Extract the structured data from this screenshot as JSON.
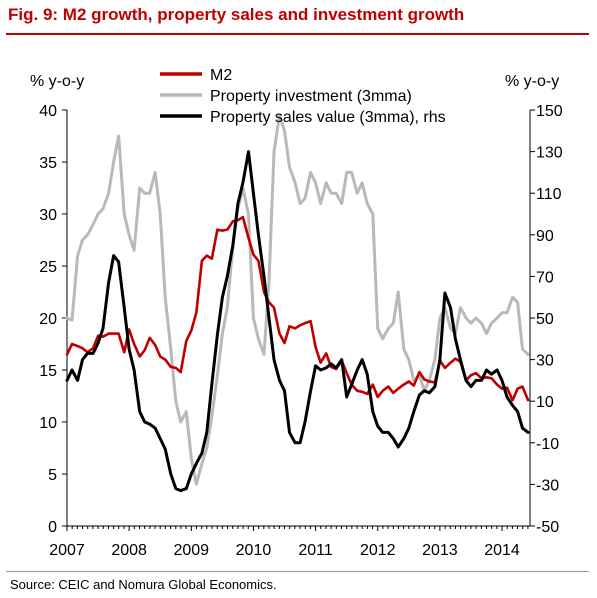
{
  "title": "Fig. 9: M2 growth, property sales and investment growth",
  "source": "Source: CEIC and Nomura Global Economics.",
  "chart_data": {
    "type": "line",
    "x_ticks": [
      "2007",
      "2008",
      "2009",
      "2010",
      "2011",
      "2012",
      "2013",
      "2014"
    ],
    "y_left": {
      "label": "% y-o-y",
      "ylim": [
        0,
        40
      ],
      "ticks": [
        0,
        5,
        10,
        15,
        20,
        25,
        30,
        35,
        40
      ]
    },
    "y_right": {
      "label": "% y-o-y",
      "ylim": [
        -50,
        150
      ],
      "ticks": [
        -50,
        -30,
        -10,
        10,
        30,
        50,
        70,
        90,
        110,
        130,
        150
      ]
    },
    "grid": false,
    "legend": {
      "placement": "top-center"
    },
    "series": [
      {
        "name": "M2",
        "axis": "left",
        "color": "#c00000",
        "points": [
          [
            2007.0,
            16.5
          ],
          [
            2007.08,
            17.5
          ],
          [
            2007.17,
            17.3
          ],
          [
            2007.25,
            17.1
          ],
          [
            2007.33,
            16.7
          ],
          [
            2007.42,
            17.1
          ],
          [
            2007.5,
            18.3
          ],
          [
            2007.58,
            18.2
          ],
          [
            2007.67,
            18.5
          ],
          [
            2007.75,
            18.5
          ],
          [
            2007.83,
            18.5
          ],
          [
            2007.92,
            16.7
          ],
          [
            2008.0,
            18.9
          ],
          [
            2008.08,
            17.5
          ],
          [
            2008.17,
            16.3
          ],
          [
            2008.25,
            16.9
          ],
          [
            2008.33,
            18.1
          ],
          [
            2008.42,
            17.4
          ],
          [
            2008.5,
            16.3
          ],
          [
            2008.58,
            16.0
          ],
          [
            2008.67,
            15.3
          ],
          [
            2008.75,
            15.2
          ],
          [
            2008.83,
            14.8
          ],
          [
            2008.92,
            17.8
          ],
          [
            2009.0,
            18.8
          ],
          [
            2009.08,
            20.5
          ],
          [
            2009.17,
            25.5
          ],
          [
            2009.25,
            26.0
          ],
          [
            2009.33,
            25.7
          ],
          [
            2009.42,
            28.5
          ],
          [
            2009.5,
            28.4
          ],
          [
            2009.58,
            28.5
          ],
          [
            2009.67,
            29.3
          ],
          [
            2009.75,
            29.4
          ],
          [
            2009.83,
            29.7
          ],
          [
            2009.92,
            27.7
          ],
          [
            2010.0,
            26.1
          ],
          [
            2010.08,
            25.5
          ],
          [
            2010.17,
            22.5
          ],
          [
            2010.25,
            21.5
          ],
          [
            2010.33,
            21.0
          ],
          [
            2010.42,
            18.5
          ],
          [
            2010.5,
            17.6
          ],
          [
            2010.58,
            19.2
          ],
          [
            2010.67,
            19.0
          ],
          [
            2010.75,
            19.3
          ],
          [
            2010.83,
            19.5
          ],
          [
            2010.92,
            19.7
          ],
          [
            2011.0,
            17.2
          ],
          [
            2011.08,
            15.7
          ],
          [
            2011.17,
            16.6
          ],
          [
            2011.25,
            15.3
          ],
          [
            2011.33,
            15.1
          ],
          [
            2011.42,
            15.9
          ],
          [
            2011.5,
            14.7
          ],
          [
            2011.58,
            13.6
          ],
          [
            2011.67,
            13.0
          ],
          [
            2011.75,
            12.9
          ],
          [
            2011.83,
            12.7
          ],
          [
            2011.92,
            13.6
          ],
          [
            2012.0,
            12.4
          ],
          [
            2012.08,
            13.0
          ],
          [
            2012.17,
            13.4
          ],
          [
            2012.25,
            12.8
          ],
          [
            2012.33,
            13.2
          ],
          [
            2012.42,
            13.6
          ],
          [
            2012.5,
            13.9
          ],
          [
            2012.58,
            13.5
          ],
          [
            2012.67,
            14.8
          ],
          [
            2012.75,
            14.1
          ],
          [
            2012.83,
            13.9
          ],
          [
            2012.92,
            13.8
          ],
          [
            2013.0,
            15.9
          ],
          [
            2013.08,
            15.2
          ],
          [
            2013.17,
            15.7
          ],
          [
            2013.25,
            16.1
          ],
          [
            2013.33,
            15.8
          ],
          [
            2013.42,
            14.0
          ],
          [
            2013.5,
            14.5
          ],
          [
            2013.58,
            14.7
          ],
          [
            2013.67,
            14.2
          ],
          [
            2013.75,
            14.3
          ],
          [
            2013.83,
            14.2
          ],
          [
            2013.92,
            13.6
          ],
          [
            2014.0,
            13.2
          ],
          [
            2014.08,
            13.3
          ],
          [
            2014.17,
            12.1
          ],
          [
            2014.25,
            13.2
          ],
          [
            2014.33,
            13.4
          ],
          [
            2014.42,
            12.1
          ]
        ]
      },
      {
        "name": "Property investment (3mma)",
        "axis": "left",
        "color": "#b9b9b9",
        "points": [
          [
            2007.0,
            20.0
          ],
          [
            2007.08,
            19.8
          ],
          [
            2007.17,
            26.0
          ],
          [
            2007.25,
            27.5
          ],
          [
            2007.33,
            28.0
          ],
          [
            2007.42,
            29.0
          ],
          [
            2007.5,
            30.0
          ],
          [
            2007.58,
            30.5
          ],
          [
            2007.67,
            32.0
          ],
          [
            2007.75,
            35.0
          ],
          [
            2007.83,
            37.5
          ],
          [
            2007.92,
            30.0
          ],
          [
            2008.0,
            28.0
          ],
          [
            2008.08,
            26.5
          ],
          [
            2008.17,
            32.5
          ],
          [
            2008.25,
            32.0
          ],
          [
            2008.33,
            32.0
          ],
          [
            2008.42,
            34.0
          ],
          [
            2008.5,
            30.0
          ],
          [
            2008.58,
            22.0
          ],
          [
            2008.67,
            17.0
          ],
          [
            2008.75,
            12.0
          ],
          [
            2008.83,
            10.0
          ],
          [
            2008.92,
            11.0
          ],
          [
            2009.0,
            6.5
          ],
          [
            2009.08,
            4.0
          ],
          [
            2009.17,
            6.0
          ],
          [
            2009.25,
            7.5
          ],
          [
            2009.33,
            10.5
          ],
          [
            2009.42,
            14.5
          ],
          [
            2009.5,
            18.5
          ],
          [
            2009.58,
            21.0
          ],
          [
            2009.67,
            27.0
          ],
          [
            2009.75,
            30.5
          ],
          [
            2009.83,
            32.5
          ],
          [
            2009.92,
            30.0
          ],
          [
            2010.0,
            20.0
          ],
          [
            2010.08,
            18.0
          ],
          [
            2010.17,
            16.5
          ],
          [
            2010.25,
            23.5
          ],
          [
            2010.33,
            36.0
          ],
          [
            2010.42,
            39.5
          ],
          [
            2010.5,
            38.0
          ],
          [
            2010.58,
            34.5
          ],
          [
            2010.67,
            33.0
          ],
          [
            2010.75,
            31.0
          ],
          [
            2010.83,
            31.5
          ],
          [
            2010.92,
            34.0
          ],
          [
            2011.0,
            33.0
          ],
          [
            2011.08,
            31.0
          ],
          [
            2011.17,
            33.0
          ],
          [
            2011.25,
            32.0
          ],
          [
            2011.33,
            32.0
          ],
          [
            2011.42,
            31.0
          ],
          [
            2011.5,
            34.0
          ],
          [
            2011.58,
            34.0
          ],
          [
            2011.67,
            32.0
          ],
          [
            2011.75,
            33.0
          ],
          [
            2011.83,
            31.0
          ],
          [
            2011.92,
            30.0
          ],
          [
            2012.0,
            19.0
          ],
          [
            2012.08,
            18.0
          ],
          [
            2012.17,
            19.0
          ],
          [
            2012.25,
            19.5
          ],
          [
            2012.33,
            22.5
          ],
          [
            2012.42,
            17.0
          ],
          [
            2012.5,
            16.0
          ],
          [
            2012.58,
            14.0
          ],
          [
            2012.67,
            14.5
          ],
          [
            2012.75,
            13.0
          ],
          [
            2012.83,
            14.0
          ],
          [
            2012.92,
            16.0
          ],
          [
            2013.0,
            20.0
          ],
          [
            2013.08,
            21.0
          ],
          [
            2013.17,
            19.0
          ],
          [
            2013.25,
            18.5
          ],
          [
            2013.33,
            21.0
          ],
          [
            2013.42,
            20.0
          ],
          [
            2013.5,
            19.5
          ],
          [
            2013.58,
            20.0
          ],
          [
            2013.67,
            19.5
          ],
          [
            2013.75,
            18.5
          ],
          [
            2013.83,
            19.5
          ],
          [
            2013.92,
            20.0
          ],
          [
            2014.0,
            20.5
          ],
          [
            2014.08,
            20.5
          ],
          [
            2014.17,
            22.0
          ],
          [
            2014.25,
            21.5
          ],
          [
            2014.33,
            17.0
          ],
          [
            2014.42,
            16.5
          ]
        ]
      },
      {
        "name": "Property sales value (3mma), rhs",
        "axis": "right",
        "color": "#000000",
        "points": [
          [
            2007.0,
            20
          ],
          [
            2007.08,
            25
          ],
          [
            2007.17,
            20
          ],
          [
            2007.25,
            30
          ],
          [
            2007.33,
            33
          ],
          [
            2007.42,
            33
          ],
          [
            2007.5,
            38
          ],
          [
            2007.58,
            45
          ],
          [
            2007.67,
            67
          ],
          [
            2007.75,
            80
          ],
          [
            2007.83,
            77
          ],
          [
            2007.92,
            55
          ],
          [
            2008.0,
            35
          ],
          [
            2008.08,
            25
          ],
          [
            2008.17,
            5
          ],
          [
            2008.25,
            0
          ],
          [
            2008.33,
            -1
          ],
          [
            2008.42,
            -3
          ],
          [
            2008.5,
            -8
          ],
          [
            2008.58,
            -13
          ],
          [
            2008.67,
            -25
          ],
          [
            2008.75,
            -32
          ],
          [
            2008.83,
            -33
          ],
          [
            2008.92,
            -32
          ],
          [
            2009.0,
            -25
          ],
          [
            2009.08,
            -20
          ],
          [
            2009.17,
            -15
          ],
          [
            2009.25,
            -5
          ],
          [
            2009.33,
            18
          ],
          [
            2009.42,
            42
          ],
          [
            2009.5,
            60
          ],
          [
            2009.58,
            70
          ],
          [
            2009.67,
            85
          ],
          [
            2009.75,
            105
          ],
          [
            2009.83,
            115
          ],
          [
            2009.92,
            130
          ],
          [
            2010.0,
            110
          ],
          [
            2010.08,
            90
          ],
          [
            2010.17,
            70
          ],
          [
            2010.25,
            50
          ],
          [
            2010.33,
            30
          ],
          [
            2010.42,
            20
          ],
          [
            2010.5,
            15
          ],
          [
            2010.58,
            -5
          ],
          [
            2010.67,
            -10
          ],
          [
            2010.75,
            -10
          ],
          [
            2010.83,
            0
          ],
          [
            2010.92,
            15
          ],
          [
            2011.0,
            27
          ],
          [
            2011.08,
            25
          ],
          [
            2011.17,
            26
          ],
          [
            2011.25,
            28
          ],
          [
            2011.33,
            26
          ],
          [
            2011.42,
            30
          ],
          [
            2011.5,
            12
          ],
          [
            2011.58,
            18
          ],
          [
            2011.67,
            25
          ],
          [
            2011.75,
            30
          ],
          [
            2011.83,
            23
          ],
          [
            2011.92,
            5
          ],
          [
            2012.0,
            -2
          ],
          [
            2012.08,
            -5
          ],
          [
            2012.17,
            -5
          ],
          [
            2012.25,
            -8
          ],
          [
            2012.33,
            -12
          ],
          [
            2012.42,
            -8
          ],
          [
            2012.5,
            -3
          ],
          [
            2012.58,
            5
          ],
          [
            2012.67,
            13
          ],
          [
            2012.75,
            15
          ],
          [
            2012.83,
            14
          ],
          [
            2012.92,
            17
          ],
          [
            2013.0,
            30
          ],
          [
            2013.08,
            62
          ],
          [
            2013.17,
            55
          ],
          [
            2013.25,
            40
          ],
          [
            2013.33,
            30
          ],
          [
            2013.42,
            20
          ],
          [
            2013.5,
            17
          ],
          [
            2013.58,
            20
          ],
          [
            2013.67,
            20
          ],
          [
            2013.75,
            25
          ],
          [
            2013.83,
            23
          ],
          [
            2013.92,
            25
          ],
          [
            2014.0,
            20
          ],
          [
            2014.08,
            12
          ],
          [
            2014.17,
            8
          ],
          [
            2014.25,
            5
          ],
          [
            2014.33,
            -3
          ],
          [
            2014.42,
            -5
          ]
        ]
      }
    ]
  }
}
